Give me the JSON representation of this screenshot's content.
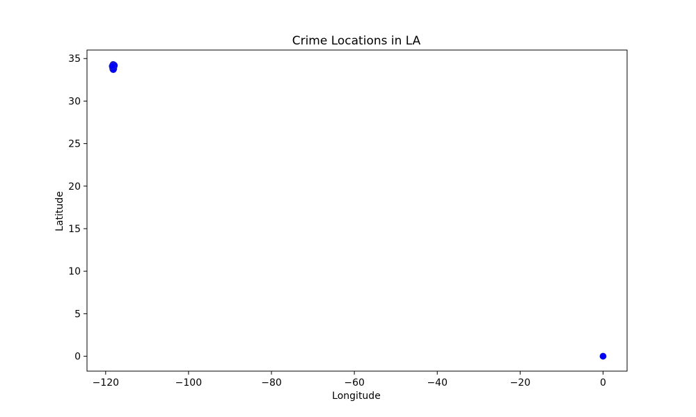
{
  "chart_data": {
    "type": "scatter",
    "title": "Crime Locations in LA",
    "xlabel": "Longitude",
    "ylabel": "Latitude",
    "xlim": [
      -124.5,
      5.8
    ],
    "ylim": [
      -1.75,
      36.0
    ],
    "x_ticks": [
      -120,
      -100,
      -80,
      -60,
      -40,
      -20,
      0
    ],
    "y_ticks": [
      0,
      5,
      10,
      15,
      20,
      25,
      30,
      35
    ],
    "x_tick_labels": [
      "−120",
      "−100",
      "−80",
      "−60",
      "−40",
      "−20",
      "0"
    ],
    "y_tick_labels": [
      "0",
      "5",
      "10",
      "15",
      "20",
      "25",
      "30",
      "35"
    ],
    "grid": false,
    "legend": "none",
    "marker_color": "#0000ff",
    "points": [
      {
        "x": -118.2,
        "y": 34.3
      },
      {
        "x": -118.0,
        "y": 34.25
      },
      {
        "x": -118.3,
        "y": 34.2
      },
      {
        "x": -118.15,
        "y": 34.15
      },
      {
        "x": -117.95,
        "y": 34.1
      },
      {
        "x": -118.35,
        "y": 34.05
      },
      {
        "x": -118.25,
        "y": 34.0
      },
      {
        "x": -118.1,
        "y": 34.0
      },
      {
        "x": -118.3,
        "y": 33.9
      },
      {
        "x": -118.2,
        "y": 33.85
      },
      {
        "x": -118.05,
        "y": 33.8
      },
      {
        "x": -118.25,
        "y": 33.75
      },
      {
        "x": -118.15,
        "y": 33.7
      },
      {
        "x": -117.9,
        "y": 34.2
      },
      {
        "x": -118.4,
        "y": 34.1
      },
      {
        "x": 0.0,
        "y": 0.0
      }
    ]
  }
}
